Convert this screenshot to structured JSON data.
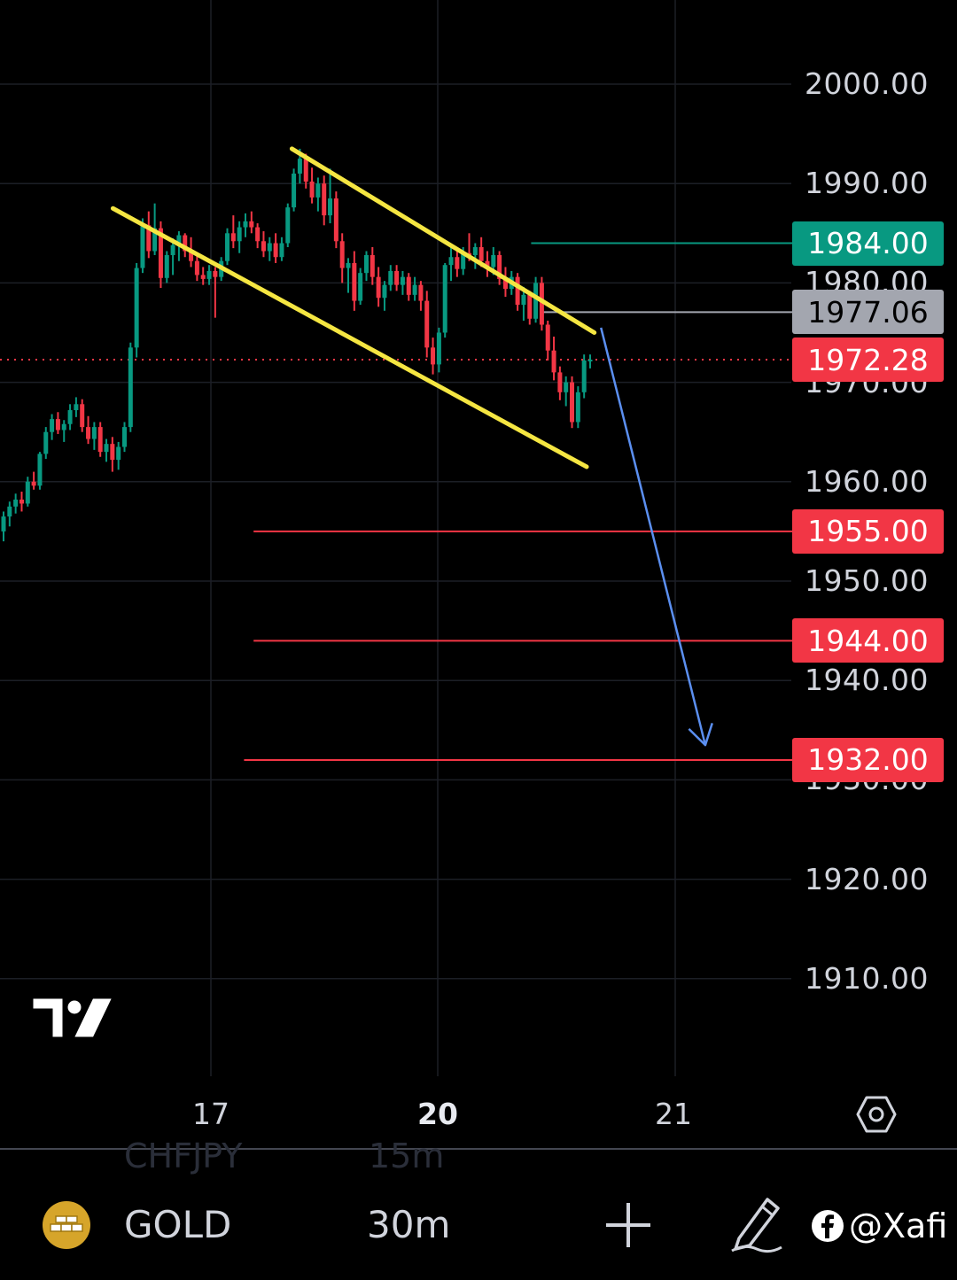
{
  "chart_data": {
    "type": "candlestick",
    "symbol": "GOLD",
    "interval": "30m",
    "x_ticks": [
      {
        "label": "17",
        "bold": false
      },
      {
        "label": "20",
        "bold": true
      },
      {
        "label": "21",
        "bold": false
      }
    ],
    "y_ticks": [
      {
        "label": "2000.00",
        "value": 2000
      },
      {
        "label": "1990.00",
        "value": 1990
      },
      {
        "label": "1980.00",
        "value": 1980
      },
      {
        "label": "1970.00",
        "value": 1970
      },
      {
        "label": "1960.00",
        "value": 1960
      },
      {
        "label": "1950.00",
        "value": 1950
      },
      {
        "label": "1940.00",
        "value": 1940
      },
      {
        "label": "1930.00",
        "value": 1930
      },
      {
        "label": "1920.00",
        "value": 1920
      },
      {
        "label": "1910.00",
        "value": 1910
      }
    ],
    "ylim": [
      1900,
      2008
    ],
    "current_price": {
      "label": "1972.28",
      "value": 1972.28,
      "color": "#f23645"
    },
    "price_tags": [
      {
        "label": "1984.00",
        "value": 1984.0,
        "color": "#089981",
        "kind": "target-up"
      },
      {
        "label": "1977.06",
        "value": 1977.06,
        "color": "#a3a6af",
        "kind": "marker"
      },
      {
        "label": "1955.00",
        "value": 1955.0,
        "color": "#f23645",
        "kind": "target"
      },
      {
        "label": "1944.00",
        "value": 1944.0,
        "color": "#f23645",
        "kind": "target"
      },
      {
        "label": "1932.00",
        "value": 1932.0,
        "color": "#f23645",
        "kind": "target"
      }
    ],
    "channel": {
      "color": "#f5e642",
      "upper": {
        "from": [
          0.305,
          1993.5
        ],
        "to": [
          0.621,
          1975.0
        ]
      },
      "lower": {
        "from": [
          0.118,
          1987.5
        ],
        "to": [
          0.613,
          1961.5
        ]
      }
    },
    "forecast_arrow": {
      "color": "#5b8ff0",
      "from": [
        0.628,
        1975.5
      ],
      "to": [
        0.737,
        1933.5
      ]
    },
    "candles": [
      [
        1955,
        1957,
        1954,
        1956.5
      ],
      [
        1956.5,
        1958,
        1955.5,
        1957.5
      ],
      [
        1957.5,
        1958.8,
        1956.8,
        1958.2
      ],
      [
        1958.2,
        1959,
        1957,
        1957.8
      ],
      [
        1957.8,
        1960.5,
        1957.5,
        1960
      ],
      [
        1960,
        1961,
        1959.2,
        1959.6
      ],
      [
        1959.6,
        1963,
        1959.2,
        1962.8
      ],
      [
        1962.8,
        1965.5,
        1962.3,
        1965
      ],
      [
        1965,
        1966.8,
        1964.2,
        1966.3
      ],
      [
        1966.3,
        1967,
        1964.8,
        1965.2
      ],
      [
        1965.2,
        1966.2,
        1964,
        1965.8
      ],
      [
        1965.8,
        1967.8,
        1965.2,
        1967.2
      ],
      [
        1967.2,
        1968.5,
        1966.5,
        1967.8
      ],
      [
        1967.8,
        1968.3,
        1965,
        1965.5
      ],
      [
        1965.5,
        1966.6,
        1963.8,
        1964.3
      ],
      [
        1964.3,
        1966,
        1963.2,
        1965.5
      ],
      [
        1965.5,
        1966,
        1962.5,
        1963
      ],
      [
        1963,
        1964.3,
        1962,
        1963.8
      ],
      [
        1963.8,
        1964.5,
        1961,
        1962.2
      ],
      [
        1962.2,
        1964,
        1961.2,
        1963.5
      ],
      [
        1963.5,
        1966,
        1963,
        1965.5
      ],
      [
        1965.5,
        1974,
        1965,
        1973.5
      ],
      [
        1973.5,
        1982,
        1972.5,
        1981.5
      ],
      [
        1981.5,
        1986.5,
        1981,
        1985.8
      ],
      [
        1985.8,
        1987.2,
        1982.5,
        1983.2
      ],
      [
        1983.2,
        1988,
        1982.8,
        1985.5
      ],
      [
        1985.5,
        1986.2,
        1979.5,
        1980.5
      ],
      [
        1980.5,
        1983.2,
        1980,
        1982.8
      ],
      [
        1982.8,
        1984.5,
        1980.8,
        1983.8
      ],
      [
        1983.8,
        1985.2,
        1982.2,
        1984.8
      ],
      [
        1984.8,
        1985,
        1982.6,
        1983.2
      ],
      [
        1983.2,
        1984.6,
        1981.6,
        1982.2
      ],
      [
        1982.2,
        1983,
        1980.2,
        1980.8
      ],
      [
        1980.8,
        1981.6,
        1979.8,
        1980.4
      ],
      [
        1980.4,
        1981.8,
        1979.8,
        1981.2
      ],
      [
        1981.2,
        1981.6,
        1976.5,
        1980.6
      ],
      [
        1980.6,
        1982.6,
        1980.2,
        1982.2
      ],
      [
        1982.2,
        1985.5,
        1981.8,
        1985
      ],
      [
        1985,
        1986.8,
        1983.5,
        1984.2
      ],
      [
        1984.2,
        1986.2,
        1983,
        1985.6
      ],
      [
        1985.6,
        1987,
        1984.6,
        1986.2
      ],
      [
        1986.2,
        1987.2,
        1985,
        1985.6
      ],
      [
        1985.6,
        1986,
        1983.5,
        1984.2
      ],
      [
        1984.2,
        1985.2,
        1982.6,
        1983.2
      ],
      [
        1983.2,
        1984.6,
        1982.2,
        1984
      ],
      [
        1984,
        1985,
        1982,
        1982.6
      ],
      [
        1982.6,
        1984.6,
        1982.2,
        1984
      ],
      [
        1984,
        1988,
        1983.6,
        1987.6
      ],
      [
        1987.6,
        1991.5,
        1987.2,
        1991
      ],
      [
        1991,
        1993.5,
        1990,
        1992.5
      ],
      [
        1992.5,
        1993,
        1989.5,
        1990.2
      ],
      [
        1990.2,
        1991.6,
        1988,
        1988.6
      ],
      [
        1988.6,
        1990.6,
        1987.2,
        1990
      ],
      [
        1990,
        1990.8,
        1985.8,
        1986.8
      ],
      [
        1986.8,
        1991.5,
        1986,
        1988.5
      ],
      [
        1988.5,
        1989.2,
        1983.5,
        1984.2
      ],
      [
        1984.2,
        1985,
        1980,
        1981.5
      ],
      [
        1981.5,
        1982.5,
        1979,
        1982
      ],
      [
        1982,
        1983.2,
        1977.2,
        1978.2
      ],
      [
        1978.2,
        1981.5,
        1977.8,
        1981
      ],
      [
        1981,
        1983.2,
        1980.2,
        1982.8
      ],
      [
        1982.8,
        1983.6,
        1979.8,
        1980.6
      ],
      [
        1980.6,
        1981.6,
        1977.6,
        1978.5
      ],
      [
        1978.5,
        1980.2,
        1977.2,
        1979.8
      ],
      [
        1979.8,
        1981.8,
        1979.2,
        1981.2
      ],
      [
        1981.2,
        1981.8,
        1979.2,
        1979.8
      ],
      [
        1979.8,
        1981.2,
        1978.8,
        1980.6
      ],
      [
        1980.6,
        1981,
        1978.2,
        1978.8
      ],
      [
        1978.8,
        1980.6,
        1978.2,
        1979.8
      ],
      [
        1979.8,
        1980.2,
        1977.2,
        1978.2
      ],
      [
        1978.2,
        1979.2,
        1972.5,
        1973.5
      ],
      [
        1973.5,
        1974.5,
        1970.8,
        1971.8
      ],
      [
        1971.8,
        1975.5,
        1971,
        1975
      ],
      [
        1975,
        1982,
        1974.5,
        1981.8
      ],
      [
        1981.8,
        1983.6,
        1980.2,
        1982.6
      ],
      [
        1982.6,
        1983.2,
        1980.6,
        1981.4
      ],
      [
        1981.4,
        1983.6,
        1980.8,
        1983
      ],
      [
        1983,
        1985,
        1982.2,
        1982.8
      ],
      [
        1982.8,
        1984,
        1981.4,
        1983.6
      ],
      [
        1983.6,
        1984.6,
        1981.6,
        1982.2
      ],
      [
        1982.2,
        1983.2,
        1980.6,
        1981.6
      ],
      [
        1981.6,
        1983.6,
        1980.8,
        1982.8
      ],
      [
        1982.8,
        1983.2,
        1979.8,
        1980.4
      ],
      [
        1980.4,
        1981.6,
        1978.6,
        1979.4
      ],
      [
        1979.4,
        1981.2,
        1978.8,
        1980.6
      ],
      [
        1980.6,
        1981,
        1977.2,
        1977.8
      ],
      [
        1977.8,
        1979.6,
        1976.2,
        1978.8
      ],
      [
        1978.8,
        1979.2,
        1975.8,
        1976.4
      ],
      [
        1976.4,
        1980.6,
        1976,
        1980
      ],
      [
        1980,
        1980.6,
        1975.2,
        1975.8
      ],
      [
        1975.8,
        1976.2,
        1972.2,
        1973.2
      ],
      [
        1973.2,
        1974.6,
        1970.2,
        1971
      ],
      [
        1971,
        1971.6,
        1968.2,
        1969
      ],
      [
        1969,
        1970.6,
        1967.6,
        1970
      ],
      [
        1970,
        1970.6,
        1965.4,
        1966
      ],
      [
        1966,
        1969.6,
        1965.4,
        1969
      ],
      [
        1969,
        1972.8,
        1968.4,
        1972.2
      ],
      [
        1972.2,
        1972.8,
        1971.4,
        1972.28
      ]
    ]
  },
  "bottom_bar": {
    "symbol": "GOLD",
    "interval": "30m",
    "ghost_symbol": "CHFJPY",
    "ghost_interval": "15m",
    "watermark": "@Xafi"
  },
  "icons": {
    "gold": "gold-bars-icon",
    "add": "plus-icon",
    "draw": "pen-icon",
    "settings": "hexagon-settings-icon",
    "logo": "tradingview-logo",
    "watermark": "facebook-icon"
  },
  "colors": {
    "up": "#089981",
    "down": "#f23645",
    "background": "#000000",
    "grid": "#1c1f26"
  }
}
